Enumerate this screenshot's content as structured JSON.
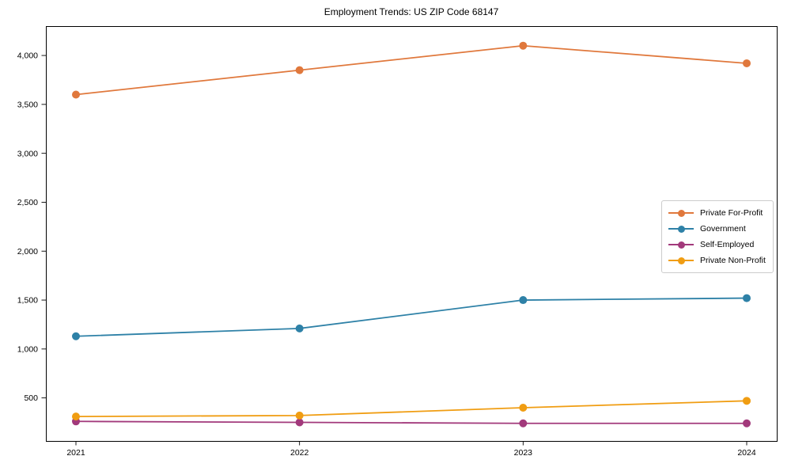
{
  "title": "Employment Trends: US ZIP Code 68147",
  "chart_data": {
    "type": "line",
    "x": [
      "2021",
      "2022",
      "2023",
      "2024"
    ],
    "series": [
      {
        "name": "Private For-Profit",
        "color": "#e0783c",
        "values": [
          3600,
          3850,
          4100,
          3920
        ]
      },
      {
        "name": "Government",
        "color": "#2e81a7",
        "values": [
          1130,
          1210,
          1500,
          1520
        ]
      },
      {
        "name": "Self-Employed",
        "color": "#a2397b",
        "values": [
          260,
          250,
          240,
          240
        ]
      },
      {
        "name": "Private Non-Profit",
        "color": "#f09d12",
        "values": [
          310,
          320,
          400,
          470
        ]
      }
    ],
    "yticks": [
      500,
      1000,
      1500,
      2000,
      2500,
      3000,
      3500,
      4000
    ],
    "ytick_labels": [
      "500",
      "1,000",
      "1,500",
      "2,000",
      "2,500",
      "3,000",
      "3,500",
      "4,000"
    ],
    "ylim": [
      60,
      4300
    ],
    "grid": false,
    "marker": "circle",
    "legend_position": "center right",
    "xlabel": "",
    "ylabel": ""
  }
}
